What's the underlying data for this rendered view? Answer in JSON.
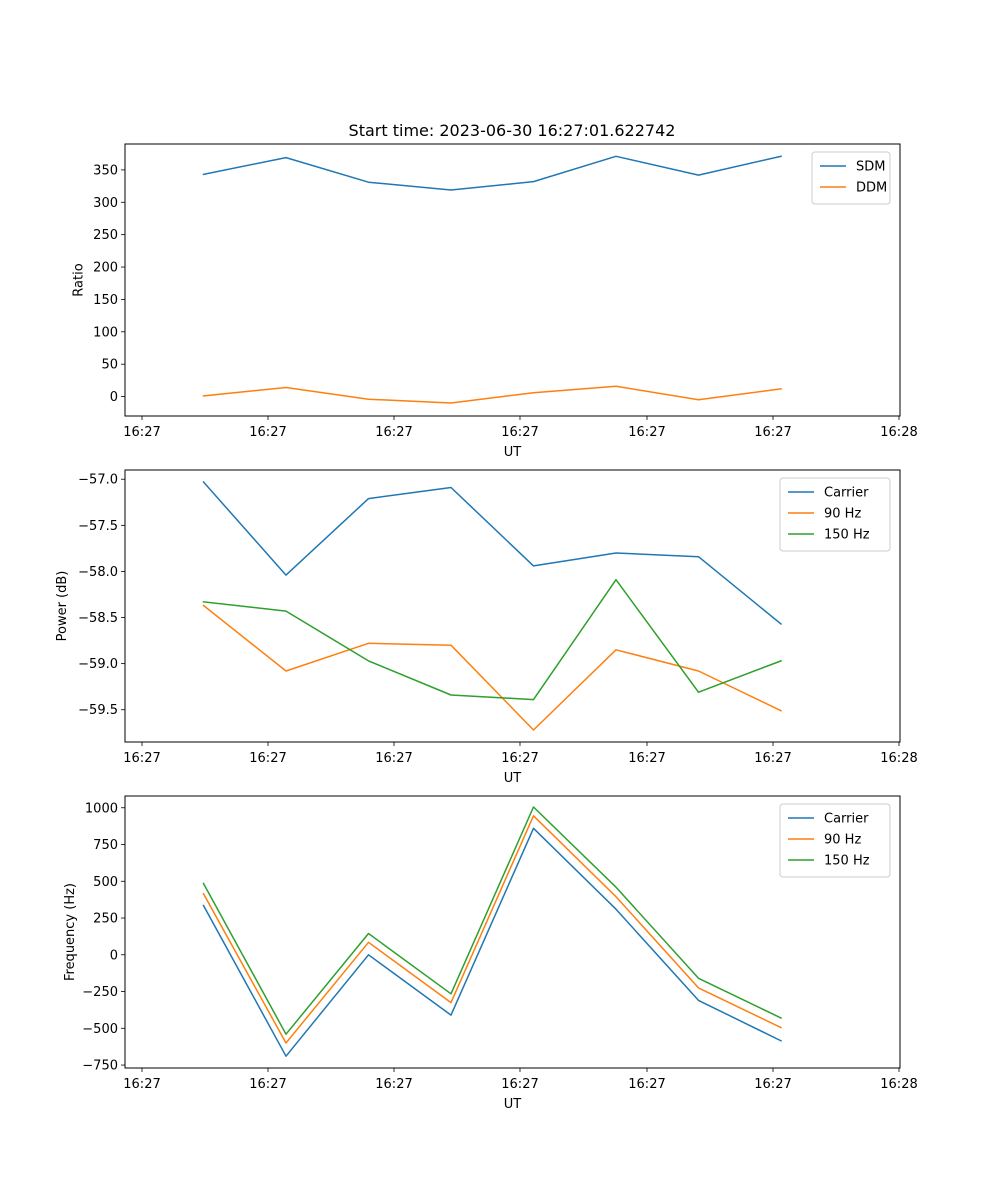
{
  "chart_data": [
    {
      "type": "line",
      "title": "Start time: 2023-06-30 16:27:01.622742",
      "xlabel": "UT",
      "ylabel": "Ratio",
      "x_tick_labels": [
        "16:27",
        "16:27",
        "16:27",
        "16:27",
        "16:27",
        "16:27",
        "16:28"
      ],
      "ylim": [
        -30,
        390
      ],
      "yticks": [
        0,
        50,
        100,
        150,
        200,
        250,
        300,
        350
      ],
      "y_tick_labels": [
        "0",
        "50",
        "100",
        "150",
        "200",
        "250",
        "300",
        "350"
      ],
      "legend_position": "upper right",
      "series": [
        {
          "name": "SDM",
          "color": "#1f77b4",
          "values": [
            343,
            369,
            331,
            319,
            332,
            371,
            342,
            371
          ]
        },
        {
          "name": "DDM",
          "color": "#ff7f0e",
          "values": [
            1,
            14,
            -4,
            -10,
            6,
            16,
            -5,
            12
          ]
        }
      ]
    },
    {
      "type": "line",
      "title": "",
      "xlabel": "UT",
      "ylabel": "Power (dB)",
      "x_tick_labels": [
        "16:27",
        "16:27",
        "16:27",
        "16:27",
        "16:27",
        "16:27",
        "16:28"
      ],
      "ylim": [
        -59.85,
        -56.9
      ],
      "yticks": [
        -59.5,
        -59.0,
        -58.5,
        -58.0,
        -57.5,
        -57.0
      ],
      "y_tick_labels": [
        "−59.5",
        "−59.0",
        "−58.5",
        "−58.0",
        "−57.5",
        "−57.0"
      ],
      "legend_position": "upper right",
      "series": [
        {
          "name": "Carrier",
          "color": "#1f77b4",
          "values": [
            -57.03,
            -58.04,
            -57.21,
            -57.09,
            -57.94,
            -57.8,
            -57.84,
            -58.57
          ]
        },
        {
          "name": "90 Hz",
          "color": "#ff7f0e",
          "values": [
            -58.37,
            -59.08,
            -58.78,
            -58.8,
            -59.72,
            -58.85,
            -59.08,
            -59.51
          ]
        },
        {
          "name": "150 Hz",
          "color": "#2ca02c",
          "values": [
            -58.33,
            -58.43,
            -58.97,
            -59.34,
            -59.39,
            -58.09,
            -59.31,
            -58.97
          ]
        }
      ]
    },
    {
      "type": "line",
      "title": "",
      "xlabel": "UT",
      "ylabel": "Frequency (Hz)",
      "x_tick_labels": [
        "16:27",
        "16:27",
        "16:27",
        "16:27",
        "16:27",
        "16:27",
        "16:28"
      ],
      "ylim": [
        -770,
        1080
      ],
      "yticks": [
        -750,
        -500,
        -250,
        0,
        250,
        500,
        750,
        1000
      ],
      "y_tick_labels": [
        "−750",
        "−500",
        "−250",
        "0",
        "250",
        "500",
        "750",
        "1000"
      ],
      "legend_position": "upper right",
      "series": [
        {
          "name": "Carrier",
          "color": "#1f77b4",
          "values": [
            335,
            -690,
            0,
            -410,
            860,
            310,
            -310,
            -585
          ]
        },
        {
          "name": "90 Hz",
          "color": "#ff7f0e",
          "values": [
            415,
            -600,
            85,
            -325,
            945,
            395,
            -225,
            -495
          ]
        },
        {
          "name": "150 Hz",
          "color": "#2ca02c",
          "values": [
            485,
            -540,
            145,
            -265,
            1005,
            460,
            -160,
            -430
          ]
        }
      ]
    }
  ]
}
